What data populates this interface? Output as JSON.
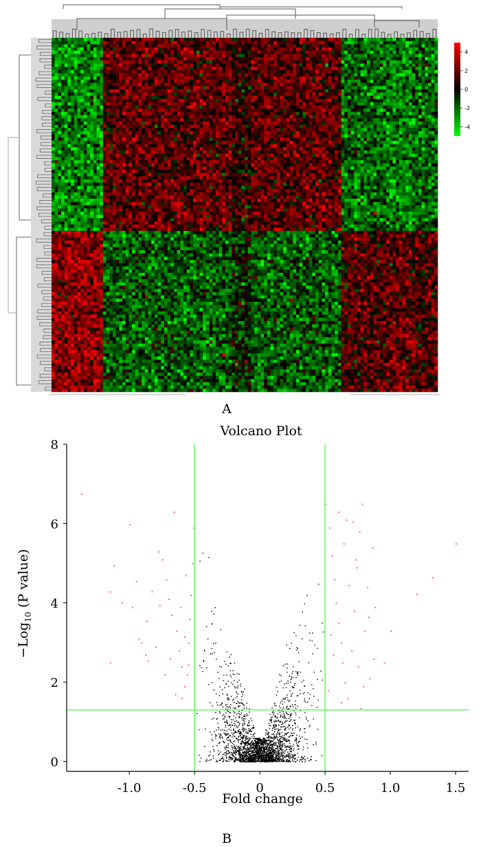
{
  "panels": {
    "a_label": "A",
    "b_label": "B"
  },
  "colors": {
    "up": "#ff0000",
    "down": "#00ff00",
    "zero": "#000000",
    "threshold_line": "#66ff66",
    "point_significant": "#ff6666",
    "point_other": "#000000"
  },
  "chart_data": [
    {
      "type": "heatmap",
      "colorbar": {
        "ticks": [
          4,
          2,
          0,
          -2,
          -4
        ],
        "range": [
          -5,
          5
        ],
        "colors": [
          "#00ff00",
          "#000000",
          "#ff0000"
        ]
      },
      "blocks": {
        "note_rows": "top half vs bottom half of rows show opposite regulation",
        "column_groups": [
          "left",
          "middle",
          "right"
        ]
      }
    },
    {
      "type": "scatter",
      "title": "Volcano Plot",
      "xlabel": "Fold change",
      "ylabel_main": "−Log",
      "ylabel_sub": "10",
      "ylabel_tail": " (P value)",
      "xlim": [
        -1.48,
        1.6
      ],
      "ylim": [
        -0.25,
        8
      ],
      "xticks": [
        "-1.0",
        "-0.5",
        "0",
        "0.5",
        "1.0",
        "1.5"
      ],
      "xtick_values": [
        -1.0,
        -0.5,
        0,
        0.5,
        1.0,
        1.5
      ],
      "yticks": [
        0,
        2,
        4,
        6,
        8
      ],
      "thresholds": {
        "fold_change": [
          -0.5,
          0.5
        ],
        "neg_log10_p": 1.3
      },
      "grid": false,
      "legend": "none",
      "series": [
        {
          "role": "significant",
          "points": [
            [
              -1.37,
              6.75
            ],
            [
              -1.0,
              5.98
            ],
            [
              -1.12,
              4.95
            ],
            [
              -1.15,
              4.29
            ],
            [
              -1.06,
              4.01
            ],
            [
              -0.98,
              3.9
            ],
            [
              -0.87,
              3.55
            ],
            [
              -0.95,
              4.55
            ],
            [
              -0.93,
              3.1
            ],
            [
              -0.88,
              2.7
            ],
            [
              -0.86,
              2.55
            ],
            [
              -0.8,
              2.9
            ],
            [
              -0.78,
              5.3
            ],
            [
              -0.72,
              4.6
            ],
            [
              -0.7,
              4.1
            ],
            [
              -0.68,
              3.7
            ],
            [
              -0.64,
              3.3
            ],
            [
              -0.62,
              2.8
            ],
            [
              -0.6,
              2.4
            ],
            [
              -0.58,
              1.9
            ],
            [
              -0.56,
              2.2
            ],
            [
              -0.55,
              3.0
            ],
            [
              -0.54,
              3.6
            ],
            [
              -0.53,
              4.2
            ],
            [
              -0.52,
              5.0
            ],
            [
              -0.51,
              5.9
            ],
            [
              -0.66,
              6.3
            ],
            [
              -0.75,
              5.1
            ],
            [
              -0.83,
              4.3
            ],
            [
              -0.73,
              2.2
            ],
            [
              -0.69,
              2.6
            ],
            [
              -0.65,
              1.7
            ],
            [
              -0.61,
              3.9
            ],
            [
              -0.57,
              4.7
            ],
            [
              -0.6,
              1.6
            ],
            [
              -1.15,
              2.5
            ],
            [
              -0.77,
              3.95
            ],
            [
              -0.91,
              3.0
            ],
            [
              -0.58,
              3.15
            ],
            [
              -0.55,
              2.45
            ],
            [
              0.5,
              6.5
            ],
            [
              0.53,
              5.9
            ],
            [
              0.55,
              5.2
            ],
            [
              0.57,
              4.6
            ],
            [
              0.58,
              4.0
            ],
            [
              0.6,
              3.5
            ],
            [
              0.62,
              3.0
            ],
            [
              0.63,
              2.5
            ],
            [
              0.65,
              2.0
            ],
            [
              0.67,
              1.6
            ],
            [
              0.7,
              2.8
            ],
            [
              0.72,
              3.8
            ],
            [
              0.74,
              4.9
            ],
            [
              0.76,
              5.8
            ],
            [
              0.78,
              6.5
            ],
            [
              0.8,
              3.3
            ],
            [
              0.82,
              4.4
            ],
            [
              0.84,
              2.1
            ],
            [
              0.86,
              5.4
            ],
            [
              0.88,
              3.9
            ],
            [
              0.66,
              6.1
            ],
            [
              0.71,
              6.05
            ],
            [
              0.6,
              6.3
            ],
            [
              0.68,
              4.45
            ],
            [
              0.52,
              1.8
            ],
            [
              0.54,
              3.2
            ],
            [
              0.56,
              2.7
            ],
            [
              0.75,
              2.4
            ],
            [
              0.79,
              1.9
            ],
            [
              0.62,
              1.5
            ],
            [
              0.87,
              2.6
            ],
            [
              0.83,
              3.65
            ],
            [
              0.73,
              5.1
            ],
            [
              0.64,
              5.5
            ],
            [
              0.77,
              1.35
            ],
            [
              1.5,
              5.5
            ],
            [
              1.32,
              4.65
            ],
            [
              1.2,
              4.23
            ],
            [
              1.0,
              3.3
            ],
            [
              0.95,
              2.5
            ]
          ]
        }
      ]
    }
  ]
}
